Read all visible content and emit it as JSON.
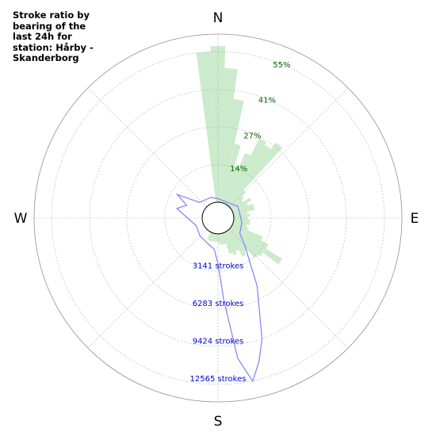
{
  "title": "Stroke ratio by bearing of the last 24h for station: Hårby - Skanderborg",
  "chart_data": {
    "type": "polar-bar",
    "title": "Stroke ratio by bearing of the last 24h for station: Hårby - Skanderborg",
    "directions": [
      "N",
      "E",
      "S",
      "W"
    ],
    "ratio_ring_labels": [
      "14%",
      "27%",
      "41%",
      "55%"
    ],
    "ratio_ring_values": [
      14,
      27,
      41,
      55
    ],
    "stroke_ring_labels": [
      "3141 strokes",
      "6283 strokes",
      "9424 strokes",
      "12565 strokes"
    ],
    "stroke_ring_values": [
      3141,
      6283,
      9424,
      12565
    ],
    "ratio_series": {
      "unit": "percent",
      "bearings": [
        -5,
        0,
        5,
        10,
        15,
        20,
        25,
        30,
        35,
        40,
        45,
        50,
        55,
        60,
        65,
        70,
        75,
        80,
        85,
        90,
        95,
        100,
        105,
        110,
        115,
        120,
        125,
        130,
        135,
        140,
        145,
        150,
        155,
        160,
        165,
        170,
        175,
        180,
        185,
        190,
        195,
        200,
        205
      ],
      "values": [
        55,
        57,
        49,
        38,
        22,
        14,
        20,
        27,
        26,
        29,
        8,
        6,
        5,
        8,
        6,
        8,
        8,
        5,
        6,
        5,
        6,
        6,
        5,
        6,
        12,
        15,
        22,
        15,
        14,
        10,
        11,
        8,
        9,
        8,
        4,
        4,
        4,
        3,
        3,
        3,
        3,
        3,
        3
      ]
    },
    "stroke_series": {
      "unit": "strokes",
      "points": [
        {
          "bearing": 0,
          "value": 300
        },
        {
          "bearing": 60,
          "value": 600
        },
        {
          "bearing": 100,
          "value": 700
        },
        {
          "bearing": 125,
          "value": 900
        },
        {
          "bearing": 135,
          "value": 1800
        },
        {
          "bearing": 150,
          "value": 5200
        },
        {
          "bearing": 160,
          "value": 9400
        },
        {
          "bearing": 164,
          "value": 11100
        },
        {
          "bearing": 168,
          "value": 12600
        },
        {
          "bearing": 172,
          "value": 10500
        },
        {
          "bearing": 176,
          "value": 5500
        },
        {
          "bearing": 180,
          "value": 2500
        },
        {
          "bearing": 187,
          "value": 1300
        },
        {
          "bearing": 200,
          "value": 1000
        },
        {
          "bearing": 225,
          "value": 800
        },
        {
          "bearing": 250,
          "value": 600
        },
        {
          "bearing": 283,
          "value": 2200
        },
        {
          "bearing": 292,
          "value": 1500
        },
        {
          "bearing": 300,
          "value": 2600
        },
        {
          "bearing": 310,
          "value": 700
        },
        {
          "bearing": 340,
          "value": 500
        }
      ]
    },
    "colors": {
      "bars": "#ccebcc",
      "strokes_line": "#8080ff",
      "ratio_labels": "#006400",
      "stroke_labels": "#0000cd",
      "grid": "#b0b0b0"
    }
  }
}
